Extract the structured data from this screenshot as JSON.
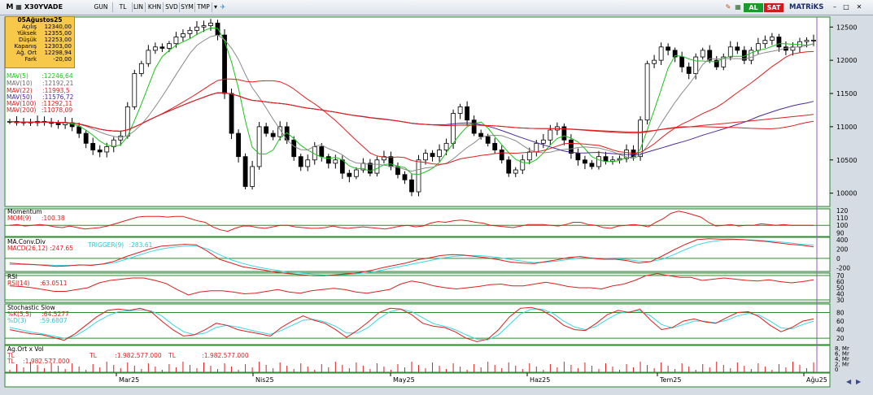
{
  "toolbar": {
    "symbol": "X30YVADE",
    "m_label": "M",
    "items": [
      "GUN",
      "TL",
      "LIN",
      "KHN",
      "SVD",
      "SYM",
      "TMP"
    ],
    "buy": "AL",
    "sell": "SAT",
    "brand": "MATRiKS"
  },
  "infobox": {
    "date": "05Ağustos25",
    "rows": [
      {
        "label": "Açılış",
        "value": "12340,00"
      },
      {
        "label": "Yüksek",
        "value": "12355,00"
      },
      {
        "label": "Düşük",
        "value": "12253,00"
      },
      {
        "label": "Kapanış",
        "value": "12303,00"
      },
      {
        "label": "Ağ. Ort",
        "value": "12298,94"
      },
      {
        "label": "Fark",
        "value": "-20,00"
      }
    ]
  },
  "legend": {
    "mav5": "MAV(5)",
    "mav5_v": ":12246,64",
    "mav10": "MAV(10)",
    "mav10_v": ":12192,21",
    "mav22": "MAV(22)",
    "mav22_v": ":11993,5",
    "mav50": "MAV(50)",
    "mav50_v": ":11576,72",
    "mav100": "MAV(100)",
    "mav100_v": ":11292,11",
    "mav200": "MAV(200)",
    "mav200_v": ":11078,09"
  },
  "panels": {
    "momentum": {
      "title": "Momentum",
      "label": "MOM(9)",
      "value": ":100.38"
    },
    "macd": {
      "title": "MA.Conv.Div",
      "label": "MACD(26,12)",
      "value": ":247.65",
      "trigger": "TRIGGER(9)",
      "trigger_v": ":283.61"
    },
    "rsi": {
      "title": "RSI",
      "label": "RSI(14)",
      "value": ":63.0511"
    },
    "stoch": {
      "title": "Stochastic Slow",
      "k": "%K(5,5)",
      "k_v": ":64.5277",
      "d": "%D(3)",
      "d_v": ":59.6807"
    },
    "vol": {
      "title": "Ag.Ort x Vol",
      "a": "TL",
      "b": "TL",
      "v1": ":1.982.577.000",
      "c": "TL",
      "v2": ":1.982.577.000",
      "d": "TL",
      "v3": ":1.982.577.000"
    }
  },
  "colors": {
    "mav5": "#19c419",
    "mav10": "#8a8a8a",
    "mav22": "#e01e1e",
    "mav50": "#4a2a9a",
    "mav100": "#e01e1e",
    "mav200": "#e01e1e",
    "macd": "#e01e1e",
    "trigger": "#3ad6e6",
    "up": "#ffffff",
    "down": "#000000",
    "bg": "#ffffff",
    "grid": "#2c8a2c"
  },
  "chart_data": {
    "type": "candlestick",
    "x_labels": [
      "Mar25",
      "Nis25",
      "May25",
      "Haz25",
      "Tem25",
      "Ağu25"
    ],
    "price_axis": {
      "ticks": [
        10000,
        10500,
        11000,
        11500,
        12000,
        12500
      ],
      "ylim": [
        9800,
        12650
      ]
    },
    "momentum_axis": {
      "ticks": [
        90,
        100,
        110,
        120
      ]
    },
    "macd_axis": {
      "ticks": [
        -200,
        0,
        200,
        400
      ]
    },
    "rsi_axis": {
      "ticks": [
        30,
        40,
        50,
        60,
        70
      ]
    },
    "stoch_axis": {
      "ticks": [
        20,
        40,
        60,
        80
      ]
    },
    "vol_axis": {
      "ticks": [
        "0",
        "2, Mr",
        "4, Mr",
        "6, Mr",
        "8, Mr"
      ]
    },
    "closes": [
      11080,
      11060,
      11070,
      11060,
      11080,
      11070,
      11050,
      11030,
      11060,
      11000,
      10900,
      10750,
      10650,
      10620,
      10700,
      10800,
      10860,
      11300,
      11800,
      11950,
      12150,
      12200,
      12180,
      12250,
      12350,
      12400,
      12450,
      12500,
      12520,
      12560,
      12380,
      11500,
      10900,
      10550,
      10100,
      10400,
      11000,
      10900,
      10850,
      11000,
      10800,
      10550,
      10400,
      10500,
      10700,
      10550,
      10450,
      10500,
      10300,
      10250,
      10350,
      10450,
      10300,
      10500,
      10550,
      10400,
      10280,
      10200,
      10020,
      10500,
      10600,
      10550,
      10650,
      10750,
      11200,
      11300,
      11100,
      10900,
      10850,
      10750,
      10650,
      10500,
      10300,
      10350,
      10500,
      10620,
      10750,
      10800,
      10950,
      11000,
      10800,
      10600,
      10500,
      10450,
      10400,
      10550,
      10480,
      10500,
      10520,
      10650,
      10550,
      11100,
      11950,
      12000,
      12200,
      12150,
      12050,
      11900,
      11800,
      12050,
      12150,
      12000,
      11900,
      12050,
      12200,
      12150,
      12000,
      12150,
      12250,
      12300,
      12350,
      12200,
      12150,
      12200,
      12280,
      12300,
      12303
    ],
    "momentum": [
      100,
      101,
      99,
      100,
      101,
      100,
      98,
      97,
      99,
      97,
      95,
      96,
      97,
      99,
      102,
      105,
      108,
      111,
      112,
      112,
      112,
      111,
      112,
      112,
      109,
      106,
      104,
      98,
      94,
      92,
      96,
      99,
      99,
      97,
      96,
      98,
      100,
      100,
      98,
      97,
      96,
      96,
      97,
      99,
      97,
      96,
      97,
      98,
      97,
      96,
      95,
      97,
      99,
      100,
      98,
      99,
      103,
      105,
      104,
      106,
      107,
      106,
      104,
      103,
      100,
      99,
      98,
      97,
      99,
      101,
      101,
      101,
      100,
      99,
      101,
      104,
      104,
      101,
      100,
      97,
      96,
      99,
      100,
      101,
      100,
      98,
      104,
      109,
      116,
      119,
      117,
      114,
      111,
      104,
      99,
      100,
      101,
      99,
      100,
      100,
      102,
      101,
      100,
      101,
      100,
      100,
      100,
      100
    ],
    "macd": [
      -100,
      -120,
      -130,
      -150,
      -170,
      -160,
      -140,
      -150,
      -120,
      -60,
      40,
      120,
      200,
      260,
      280,
      300,
      290,
      150,
      -20,
      -100,
      -180,
      -220,
      -260,
      -300,
      -330,
      -350,
      -370,
      -370,
      -350,
      -330,
      -300,
      -260,
      -200,
      -150,
      -100,
      -30,
      10,
      60,
      80,
      70,
      40,
      10,
      -30,
      -80,
      -100,
      -110,
      -70,
      -30,
      20,
      40,
      0,
      -20,
      -20,
      -50,
      -100,
      -70,
      50,
      180,
      300,
      400,
      420,
      410,
      410,
      400,
      380,
      360,
      330,
      300,
      280,
      247
    ],
    "trigger": [
      -130,
      -130,
      -135,
      -140,
      -150,
      -150,
      -145,
      -140,
      -125,
      -90,
      -20,
      60,
      140,
      200,
      240,
      260,
      265,
      200,
      80,
      -30,
      -110,
      -170,
      -220,
      -260,
      -300,
      -320,
      -340,
      -355,
      -355,
      -345,
      -325,
      -295,
      -250,
      -200,
      -150,
      -100,
      -50,
      0,
      40,
      60,
      60,
      45,
      15,
      -25,
      -60,
      -90,
      -80,
      -60,
      -20,
      10,
      10,
      0,
      -10,
      -25,
      -60,
      -70,
      -20,
      80,
      190,
      290,
      350,
      385,
      400,
      400,
      390,
      375,
      355,
      330,
      300,
      283
    ],
    "rsi": [
      53,
      52,
      50,
      47,
      44,
      44,
      47,
      50,
      58,
      62,
      64,
      66,
      66,
      62,
      57,
      47,
      38,
      43,
      45,
      45,
      43,
      40,
      41,
      44,
      47,
      43,
      41,
      45,
      47,
      49,
      47,
      43,
      41,
      44,
      47,
      56,
      61,
      58,
      53,
      50,
      48,
      50,
      52,
      55,
      56,
      53,
      53,
      56,
      59,
      56,
      52,
      50,
      50,
      48,
      53,
      56,
      62,
      70,
      73,
      70,
      67,
      67,
      62,
      64,
      66,
      64,
      62,
      61,
      63,
      60,
      58,
      60,
      63
    ],
    "stoch_k": [
      40,
      35,
      30,
      28,
      22,
      15,
      30,
      50,
      70,
      85,
      88,
      85,
      90,
      82,
      60,
      40,
      25,
      28,
      40,
      55,
      50,
      40,
      35,
      30,
      25,
      45,
      60,
      72,
      62,
      55,
      40,
      22,
      38,
      58,
      80,
      90,
      88,
      75,
      55,
      48,
      45,
      35,
      20,
      12,
      18,
      40,
      70,
      90,
      92,
      85,
      70,
      50,
      40,
      38,
      55,
      75,
      85,
      80,
      88,
      62,
      40,
      45,
      60,
      65,
      58,
      55,
      68,
      80,
      82,
      70,
      50,
      35,
      45,
      60,
      65
    ],
    "stoch_d": [
      45,
      40,
      34,
      30,
      25,
      20,
      25,
      40,
      58,
      72,
      82,
      84,
      86,
      84,
      72,
      52,
      35,
      28,
      32,
      45,
      50,
      46,
      40,
      34,
      29,
      38,
      50,
      62,
      64,
      58,
      48,
      32,
      32,
      45,
      66,
      82,
      88,
      82,
      68,
      54,
      48,
      40,
      28,
      18,
      16,
      28,
      52,
      76,
      88,
      88,
      78,
      60,
      46,
      40,
      48,
      64,
      78,
      82,
      84,
      72,
      52,
      44,
      52,
      60,
      60,
      56,
      62,
      72,
      78,
      74,
      60,
      44,
      42,
      52,
      60
    ]
  }
}
